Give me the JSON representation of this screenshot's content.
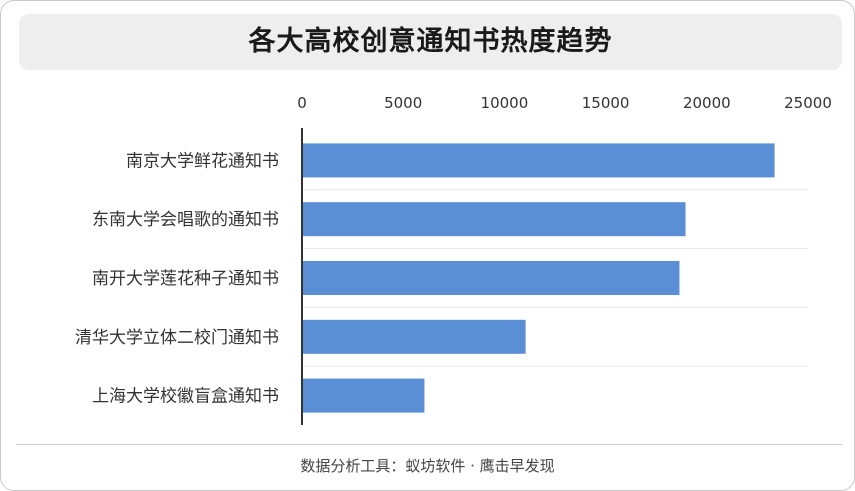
{
  "title": "各大高校创意通知书热度趋势",
  "footer": "数据分析工具：蚁坊软件 · 鹰击早发现",
  "chart_data": {
    "type": "bar",
    "orientation": "horizontal",
    "categories": [
      "南京大学鲜花通知书",
      "东南大学会唱歌的通知书",
      "南开大学莲花种子通知书",
      "清华大学立体二校门通知书",
      "上海大学校徽盲盒通知书"
    ],
    "values": [
      23300,
      18900,
      18600,
      11000,
      6000
    ],
    "xticks": [
      "0",
      "5000",
      "10000",
      "15000",
      "20000",
      "25000"
    ],
    "xlim": [
      0,
      25000
    ],
    "axis_position": "top",
    "grid": "horizontal separators",
    "colors": {
      "bar": "#5b8fd5",
      "axis": "#333333",
      "grid": "#e6e6e6"
    }
  }
}
